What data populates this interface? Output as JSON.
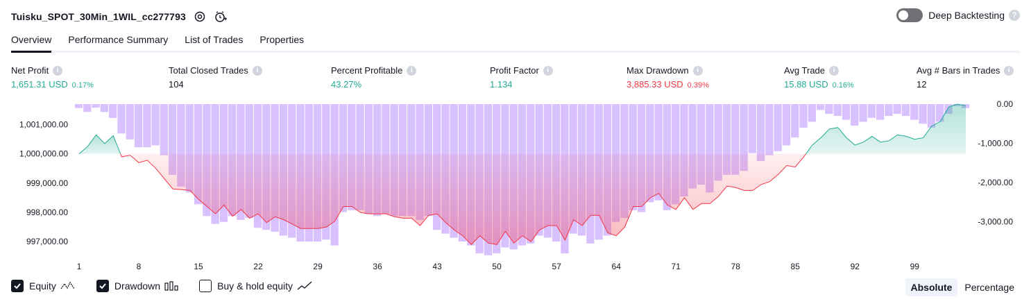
{
  "header": {
    "title": "Tuisku_SPOT_30Min_1WIL_cc277793",
    "settings_icon": "gear-icon",
    "add_alert_icon": "alarm-add-icon",
    "deep_backtesting_label": "Deep Backtesting",
    "deep_backtesting_enabled": false
  },
  "tabs": [
    {
      "label": "Overview",
      "active": true
    },
    {
      "label": "Performance Summary",
      "active": false
    },
    {
      "label": "List of Trades",
      "active": false
    },
    {
      "label": "Properties",
      "active": false
    }
  ],
  "stats": [
    {
      "label": "Net Profit",
      "value": "1,651.31 USD",
      "pct": "0.17%",
      "color": "#22ab94"
    },
    {
      "label": "Total Closed Trades",
      "value": "104",
      "pct": "",
      "color": "#131722"
    },
    {
      "label": "Percent Profitable",
      "value": "43.27%",
      "pct": "",
      "color": "#22ab94"
    },
    {
      "label": "Profit Factor",
      "value": "1.134",
      "pct": "",
      "color": "#22ab94"
    },
    {
      "label": "Max Drawdown",
      "value": "3,885.33 USD",
      "pct": "0.39%",
      "color": "#f23645"
    },
    {
      "label": "Avg Trade",
      "value": "15.88 USD",
      "pct": "0.16%",
      "color": "#22ab94"
    },
    {
      "label": "Avg # Bars in Trades",
      "value": "12",
      "pct": "",
      "color": "#131722"
    }
  ],
  "chart_data": {
    "type": "line",
    "x_ticks": [
      "1",
      "8",
      "15",
      "22",
      "29",
      "36",
      "43",
      "50",
      "57",
      "64",
      "71",
      "78",
      "85",
      "92",
      "99"
    ],
    "left_axis": {
      "ticks": [
        "1,001,000.00",
        "1,000,000.00",
        "999,000.00",
        "998,000.00",
        "997,000.00"
      ],
      "ylim": [
        996600,
        1001700
      ]
    },
    "right_axis": {
      "ticks": [
        "0.00",
        "-1,000.00",
        "-2,000.00",
        "-3,000.00"
      ],
      "ylim": [
        -3800,
        0
      ]
    },
    "baseline": 1000000,
    "series": [
      {
        "name": "Equity",
        "color_up": "#22ab94",
        "color_down": "#f23645",
        "x": [
          1,
          2,
          3,
          4,
          5,
          6,
          7,
          8,
          9,
          10,
          11,
          12,
          13,
          14,
          15,
          16,
          17,
          18,
          19,
          20,
          21,
          22,
          23,
          24,
          25,
          26,
          27,
          28,
          29,
          30,
          31,
          32,
          33,
          34,
          35,
          36,
          37,
          38,
          39,
          40,
          41,
          42,
          43,
          44,
          45,
          46,
          47,
          48,
          49,
          50,
          51,
          52,
          53,
          54,
          55,
          56,
          57,
          58,
          59,
          60,
          61,
          62,
          63,
          64,
          65,
          66,
          67,
          68,
          69,
          70,
          71,
          72,
          73,
          74,
          75,
          76,
          77,
          78,
          79,
          80,
          81,
          82,
          83,
          84,
          85,
          86,
          87,
          88,
          89,
          90,
          91,
          92,
          93,
          94,
          95,
          96,
          97,
          98,
          99,
          100,
          101,
          102,
          103,
          104,
          105
        ],
        "values": [
          1000000,
          1000250,
          1000650,
          1000350,
          1000620,
          999900,
          999950,
          999700,
          999780,
          999500,
          999150,
          998800,
          998780,
          998750,
          998450,
          998200,
          997950,
          998250,
          997870,
          998100,
          997800,
          997950,
          997650,
          997850,
          997750,
          997600,
          997450,
          997450,
          997450,
          997500,
          997700,
          998200,
          998200,
          998000,
          997950,
          997950,
          997950,
          997850,
          997800,
          997800,
          997550,
          997900,
          997950,
          997650,
          997400,
          997200,
          996900,
          997200,
          996950,
          996900,
          997350,
          996950,
          997200,
          997000,
          997400,
          997550,
          997550,
          997050,
          997750,
          997550,
          997900,
          997900,
          997300,
          997200,
          997500,
          998200,
          998200,
          998500,
          998650,
          998250,
          998100,
          998500,
          998100,
          998300,
          998300,
          998550,
          998900,
          998850,
          998750,
          998750,
          998950,
          999050,
          999300,
          999600,
          999550,
          999900,
          1000300,
          1000550,
          1000850,
          1000900,
          1000550,
          1000300,
          1000400,
          1000600,
          1000400,
          1000450,
          1000650,
          1000600,
          1000500,
          1000550,
          1000950,
          1001100,
          1001600,
          1001700,
          1001650
        ]
      },
      {
        "name": "Drawdown",
        "color": "#c9a7ff",
        "values": [
          -100,
          -200,
          -90,
          -200,
          -350,
          -750,
          -900,
          -1100,
          -1100,
          -1050,
          -1300,
          -1800,
          -2100,
          -2250,
          -2550,
          -2850,
          -3050,
          -3000,
          -2850,
          -2950,
          -2900,
          -3150,
          -3200,
          -3250,
          -3350,
          -3400,
          -3500,
          -3500,
          -3500,
          -3450,
          -3600,
          -2750,
          -2700,
          -2700,
          -2800,
          -2850,
          -2800,
          -2850,
          -2850,
          -2850,
          -2950,
          -2850,
          -3200,
          -3300,
          -3400,
          -3500,
          -3600,
          -3800,
          -3850,
          -3800,
          -3650,
          -3700,
          -3600,
          -3550,
          -3350,
          -3400,
          -3500,
          -3800,
          -3300,
          -3350,
          -3550,
          -3450,
          -3350,
          -3000,
          -2900,
          -2700,
          -2750,
          -2500,
          -2450,
          -2700,
          -2550,
          -2350,
          -2150,
          -2050,
          -2250,
          -1950,
          -1800,
          -1800,
          -1700,
          -1250,
          -1450,
          -1300,
          -1200,
          -1050,
          -850,
          -600,
          -450,
          -150,
          -250,
          -300,
          -400,
          -550,
          -450,
          -350,
          -400,
          -300,
          -250,
          -300,
          -400,
          -500,
          -600,
          -450,
          -250,
          -50,
          -100
        ]
      }
    ],
    "legend": [
      {
        "name": "Equity",
        "checked": true,
        "icon": "line-chart-icon"
      },
      {
        "name": "Drawdown",
        "checked": true,
        "icon": "bar-chart-icon"
      },
      {
        "name": "Buy & hold equity",
        "checked": false,
        "icon": "trend-line-icon"
      }
    ],
    "grid": false
  },
  "mode_buttons": [
    {
      "label": "Absolute",
      "active": true
    },
    {
      "label": "Percentage",
      "active": false
    }
  ]
}
